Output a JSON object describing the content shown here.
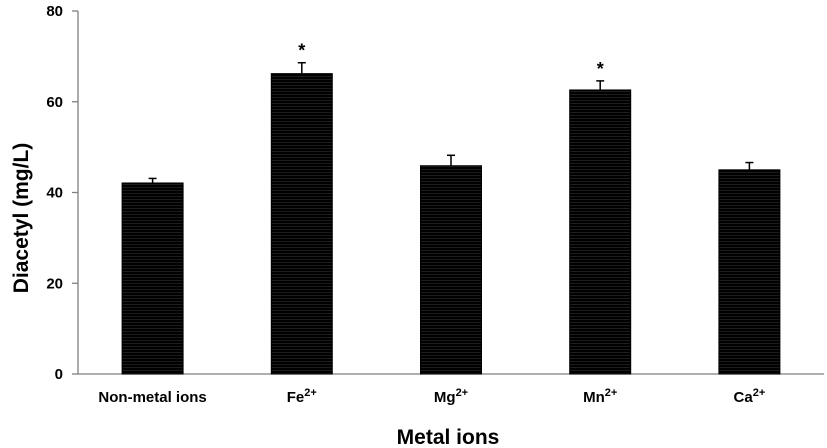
{
  "chart_data": {
    "type": "bar",
    "categories": [
      {
        "base": "Non-metal ions",
        "sup": ""
      },
      {
        "base": "Fe",
        "sup": "2+"
      },
      {
        "base": "Mg",
        "sup": "2+"
      },
      {
        "base": "Mn",
        "sup": "2+"
      },
      {
        "base": "Ca",
        "sup": "2+"
      }
    ],
    "values": [
      42.1,
      66.2,
      45.9,
      62.6,
      45.0
    ],
    "errors": [
      1.0,
      2.4,
      2.3,
      2.0,
      1.6
    ],
    "significance": [
      "",
      "*",
      "",
      "*",
      ""
    ],
    "xlabel": "Metal ions",
    "ylabel": "Diacetyl  (mg/L)",
    "ylim": [
      0,
      80
    ],
    "yticks": [
      "0",
      "20",
      "40",
      "60",
      "80"
    ],
    "grid": false,
    "legend": "none",
    "bar_color": "#000000"
  }
}
